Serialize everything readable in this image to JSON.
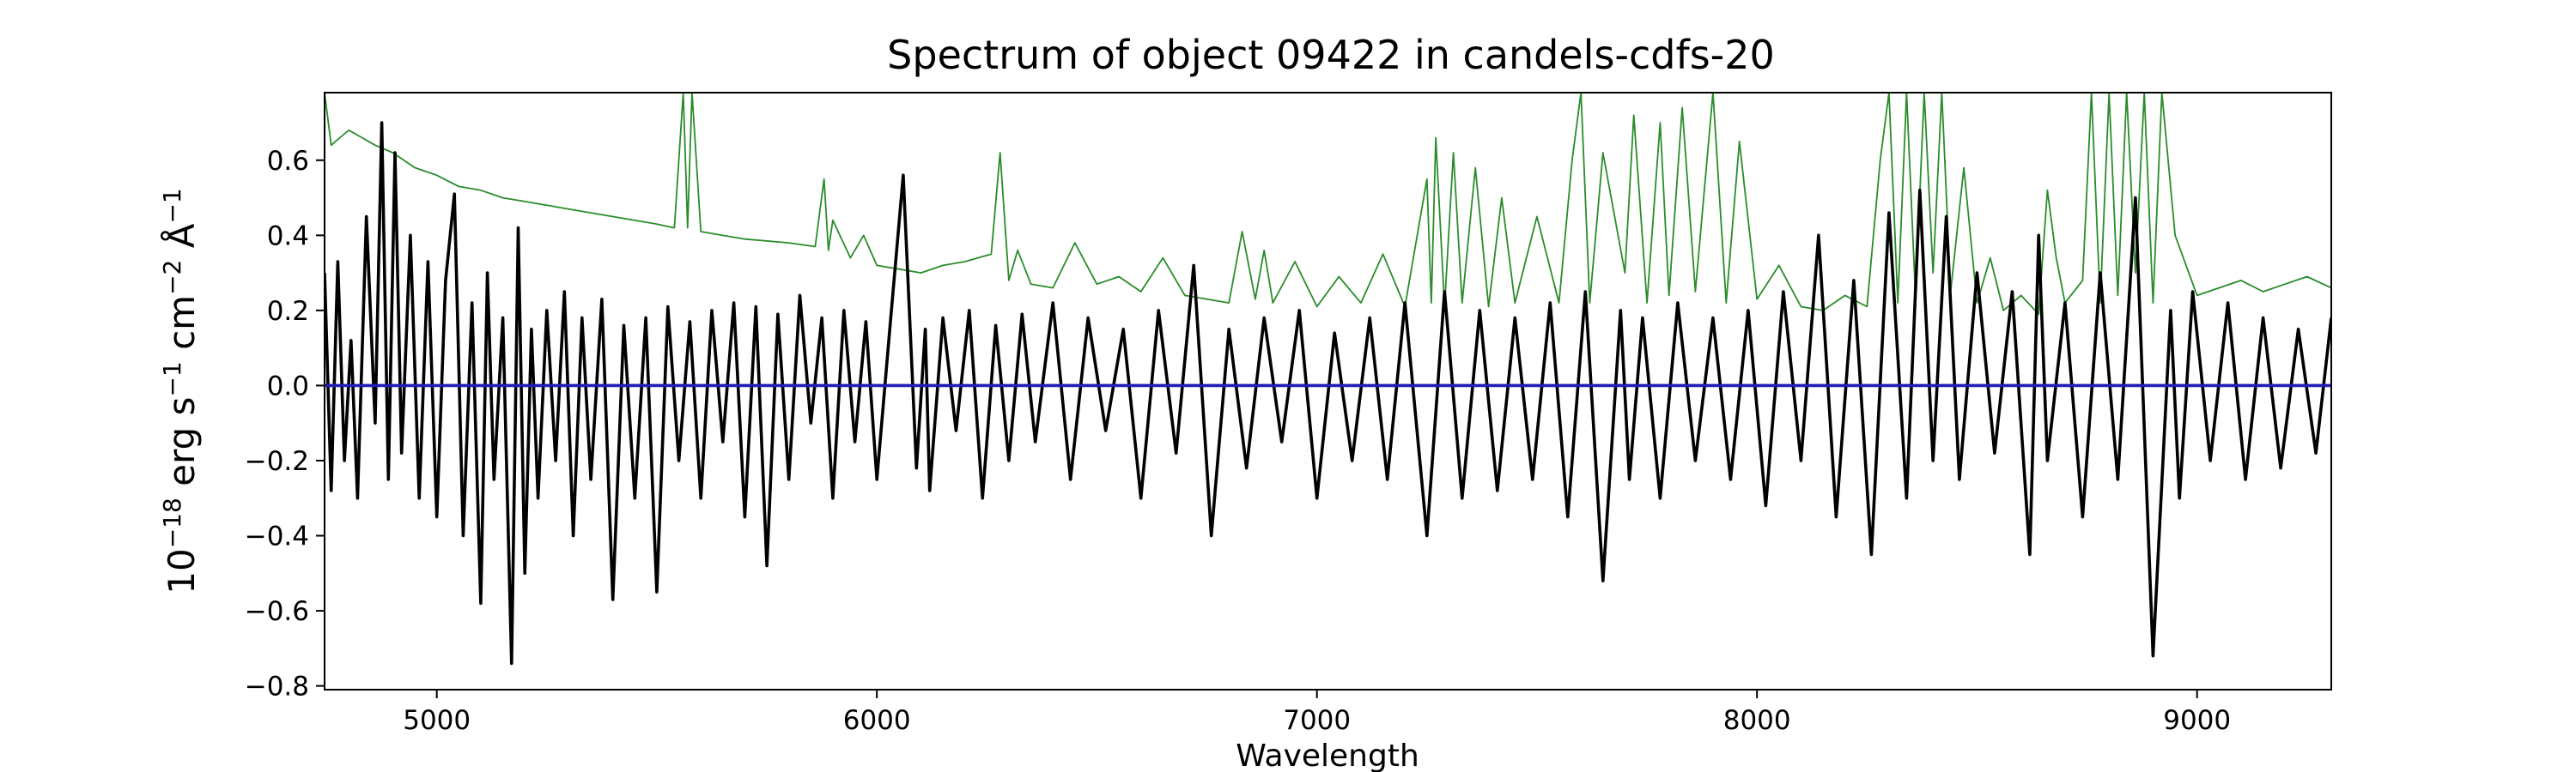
{
  "chart_data": {
    "type": "line",
    "title": "Spectrum of object 09422 in candels-cdfs-20",
    "xlabel": "Wavelength",
    "ylabel": {
      "base": "10",
      "exp1": "−18",
      "unit1": " erg s",
      "exp2": "−1",
      "unit2": " cm",
      "exp3": "−2",
      "unit3": " Å",
      "exp4": "−1"
    },
    "xlim": [
      4745,
      9305
    ],
    "ylim": [
      -0.81,
      0.78
    ],
    "x_ticks": [
      5000,
      6000,
      7000,
      8000,
      9000
    ],
    "x_tick_labels": [
      "5000",
      "6000",
      "7000",
      "8000",
      "9000"
    ],
    "y_ticks": [
      -0.8,
      -0.6,
      -0.4,
      -0.2,
      0.0,
      0.2,
      0.4,
      0.6
    ],
    "y_tick_labels": [
      "−0.8",
      "−0.6",
      "−0.4",
      "−0.2",
      "0.0",
      "0.2",
      "0.4",
      "0.6"
    ],
    "grid": false,
    "series": [
      {
        "color": "#2a8c2a",
        "style": "thin-line",
        "x": [
          4745,
          4760,
          4780,
          4800,
          4830,
          4860,
          4900,
          4950,
          5000,
          5050,
          5100,
          5150,
          5200,
          5250,
          5300,
          5400,
          5500,
          5540,
          5560,
          5570,
          5580,
          5600,
          5700,
          5800,
          5860,
          5880,
          5890,
          5900,
          5940,
          5970,
          6000,
          6050,
          6100,
          6150,
          6200,
          6260,
          6280,
          6300,
          6320,
          6350,
          6400,
          6450,
          6500,
          6550,
          6600,
          6650,
          6700,
          6750,
          6800,
          6830,
          6860,
          6880,
          6900,
          6950,
          7000,
          7050,
          7100,
          7150,
          7200,
          7250,
          7260,
          7270,
          7290,
          7310,
          7330,
          7360,
          7390,
          7420,
          7450,
          7500,
          7550,
          7580,
          7600,
          7620,
          7650,
          7700,
          7720,
          7750,
          7780,
          7800,
          7830,
          7860,
          7900,
          7930,
          7960,
          8000,
          8050,
          8100,
          8150,
          8200,
          8250,
          8280,
          8300,
          8320,
          8340,
          8360,
          8380,
          8400,
          8420,
          8440,
          8470,
          8500,
          8530,
          8560,
          8600,
          8640,
          8660,
          8680,
          8700,
          8740,
          8760,
          8780,
          8800,
          8820,
          8840,
          8860,
          8880,
          8900,
          8920,
          8950,
          9000,
          9050,
          9100,
          9150,
          9200,
          9250,
          9305
        ],
        "y": [
          0.78,
          0.64,
          0.66,
          0.68,
          0.66,
          0.64,
          0.62,
          0.58,
          0.56,
          0.53,
          0.52,
          0.5,
          0.49,
          0.48,
          0.47,
          0.45,
          0.43,
          0.42,
          0.78,
          0.42,
          0.78,
          0.41,
          0.39,
          0.38,
          0.37,
          0.55,
          0.36,
          0.44,
          0.34,
          0.4,
          0.32,
          0.31,
          0.3,
          0.32,
          0.33,
          0.35,
          0.62,
          0.28,
          0.36,
          0.27,
          0.26,
          0.38,
          0.27,
          0.29,
          0.25,
          0.34,
          0.24,
          0.23,
          0.22,
          0.41,
          0.23,
          0.36,
          0.22,
          0.33,
          0.21,
          0.29,
          0.22,
          0.35,
          0.21,
          0.55,
          0.22,
          0.66,
          0.21,
          0.62,
          0.22,
          0.58,
          0.21,
          0.5,
          0.22,
          0.45,
          0.22,
          0.6,
          0.78,
          0.22,
          0.62,
          0.3,
          0.72,
          0.22,
          0.7,
          0.24,
          0.74,
          0.25,
          0.78,
          0.22,
          0.65,
          0.23,
          0.32,
          0.21,
          0.2,
          0.24,
          0.21,
          0.6,
          0.78,
          0.22,
          0.78,
          0.24,
          0.78,
          0.3,
          0.78,
          0.25,
          0.58,
          0.22,
          0.34,
          0.2,
          0.24,
          0.19,
          0.52,
          0.34,
          0.22,
          0.28,
          0.78,
          0.22,
          0.78,
          0.24,
          0.78,
          0.3,
          0.78,
          0.22,
          0.78,
          0.4,
          0.24,
          0.26,
          0.28,
          0.25,
          0.27,
          0.29,
          0.26
        ]
      },
      {
        "color": "#000000",
        "style": "thick-line",
        "x": [
          4745,
          4760,
          4775,
          4790,
          4805,
          4820,
          4840,
          4860,
          4875,
          4890,
          4905,
          4920,
          4940,
          4960,
          4980,
          5000,
          5020,
          5040,
          5060,
          5080,
          5100,
          5115,
          5130,
          5150,
          5170,
          5185,
          5200,
          5215,
          5230,
          5250,
          5270,
          5290,
          5310,
          5330,
          5350,
          5375,
          5400,
          5425,
          5450,
          5475,
          5500,
          5525,
          5550,
          5575,
          5600,
          5625,
          5650,
          5675,
          5700,
          5725,
          5750,
          5775,
          5800,
          5825,
          5850,
          5875,
          5900,
          5925,
          5950,
          5975,
          6000,
          6030,
          6060,
          6090,
          6110,
          6120,
          6150,
          6180,
          6210,
          6240,
          6270,
          6300,
          6330,
          6360,
          6400,
          6440,
          6480,
          6520,
          6560,
          6600,
          6640,
          6680,
          6720,
          6760,
          6800,
          6840,
          6880,
          6920,
          6960,
          7000,
          7040,
          7080,
          7120,
          7160,
          7200,
          7250,
          7290,
          7330,
          7370,
          7410,
          7450,
          7490,
          7530,
          7570,
          7610,
          7650,
          7690,
          7710,
          7740,
          7780,
          7820,
          7860,
          7900,
          7940,
          7980,
          8020,
          8060,
          8100,
          8140,
          8180,
          8220,
          8260,
          8300,
          8340,
          8370,
          8400,
          8430,
          8460,
          8500,
          8540,
          8580,
          8620,
          8640,
          8660,
          8700,
          8740,
          8780,
          8820,
          8860,
          8900,
          8940,
          8960,
          8990,
          9030,
          9070,
          9110,
          9150,
          9190,
          9230,
          9270,
          9305
        ],
        "y": [
          0.3,
          -0.28,
          0.33,
          -0.2,
          0.12,
          -0.3,
          0.45,
          -0.1,
          0.7,
          -0.25,
          0.62,
          -0.18,
          0.4,
          -0.3,
          0.33,
          -0.35,
          0.28,
          0.51,
          -0.4,
          0.22,
          -0.58,
          0.3,
          -0.25,
          0.18,
          -0.74,
          0.42,
          -0.5,
          0.15,
          -0.3,
          0.2,
          -0.2,
          0.25,
          -0.4,
          0.18,
          -0.25,
          0.23,
          -0.57,
          0.16,
          -0.3,
          0.18,
          -0.55,
          0.21,
          -0.2,
          0.17,
          -0.3,
          0.2,
          -0.15,
          0.22,
          -0.35,
          0.21,
          -0.48,
          0.19,
          -0.25,
          0.24,
          -0.1,
          0.18,
          -0.3,
          0.2,
          -0.15,
          0.17,
          -0.25,
          0.16,
          0.56,
          -0.22,
          0.15,
          -0.28,
          0.18,
          -0.12,
          0.2,
          -0.3,
          0.16,
          -0.2,
          0.19,
          -0.15,
          0.22,
          -0.25,
          0.18,
          -0.12,
          0.15,
          -0.3,
          0.2,
          -0.18,
          0.32,
          -0.4,
          0.15,
          -0.22,
          0.18,
          -0.15,
          0.2,
          -0.3,
          0.14,
          -0.2,
          0.18,
          -0.25,
          0.22,
          -0.4,
          0.25,
          -0.3,
          0.2,
          -0.28,
          0.18,
          -0.25,
          0.22,
          -0.35,
          0.25,
          -0.52,
          0.2,
          -0.25,
          0.18,
          -0.3,
          0.22,
          -0.2,
          0.18,
          -0.25,
          0.2,
          -0.32,
          0.25,
          -0.2,
          0.4,
          -0.35,
          0.28,
          -0.45,
          0.46,
          -0.3,
          0.52,
          -0.2,
          0.45,
          -0.25,
          0.3,
          -0.18,
          0.25,
          -0.45,
          0.4,
          -0.2,
          0.22,
          -0.35,
          0.3,
          -0.25,
          0.5,
          -0.72,
          0.2,
          -0.3,
          0.25,
          -0.2,
          0.22,
          -0.25,
          0.18,
          -0.22,
          0.15,
          -0.18,
          0.18
        ]
      },
      {
        "color": "#1f1fb4",
        "style": "thick-line",
        "x": [
          4745,
          9305
        ],
        "y": [
          0.0,
          0.0
        ]
      }
    ]
  }
}
